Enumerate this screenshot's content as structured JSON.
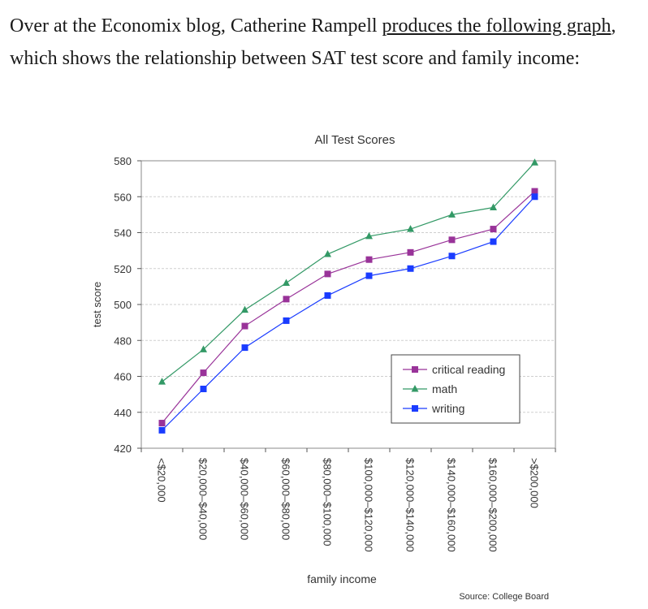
{
  "intro": {
    "before_link": "Over at the Economix blog, Catherine Rampell ",
    "link_text": "produces the following graph",
    "after_link": ", which shows the relationship between SAT test score and family income:"
  },
  "chart_data": {
    "type": "line",
    "title": "All Test Scores",
    "xlabel": "family income",
    "ylabel": "test score",
    "ylim": [
      420,
      580
    ],
    "yticks": [
      420,
      440,
      460,
      480,
      500,
      520,
      540,
      560,
      580
    ],
    "grid": true,
    "legend_position": "lower-right",
    "source": "Source: College Board",
    "categories": [
      "<$20,000",
      "$20,000–$40,000",
      "$40,000–$60,000",
      "$60,000–$80,000",
      "$80,000–$100,000",
      "$100,000–$120,000",
      "$120,000–$140,000",
      "$140,000–$160,000",
      "$160,000–$200,000",
      ">$200,000"
    ],
    "series": [
      {
        "name": "critical reading",
        "color": "#993399",
        "marker": "square",
        "values": [
          434,
          462,
          488,
          503,
          517,
          525,
          529,
          536,
          542,
          563
        ]
      },
      {
        "name": "math",
        "color": "#339966",
        "marker": "triangle",
        "values": [
          457,
          475,
          497,
          512,
          528,
          538,
          542,
          550,
          554,
          579
        ]
      },
      {
        "name": "writing",
        "color": "#1a3cff",
        "marker": "square",
        "values": [
          430,
          453,
          476,
          491,
          505,
          516,
          520,
          527,
          535,
          560
        ]
      }
    ]
  }
}
